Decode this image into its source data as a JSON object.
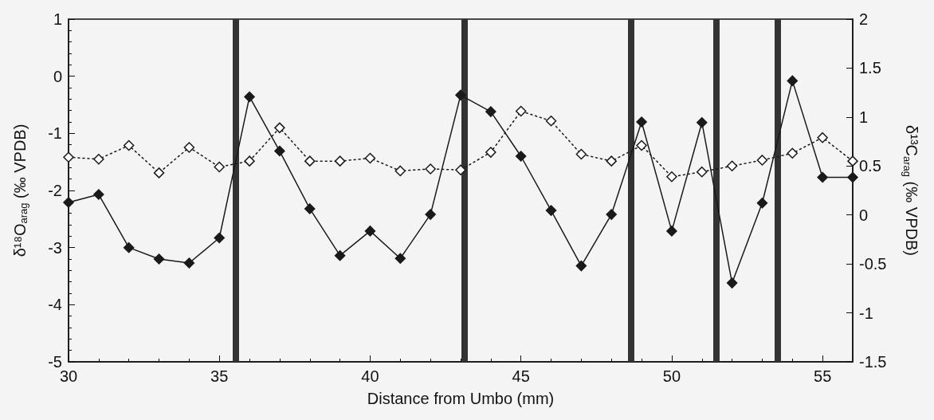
{
  "chart_data": {
    "type": "line",
    "xlabel": "Distance from Umbo (mm)",
    "ylabel": "δ¹⁸O$_{arag}$ (‰ VPDB)",
    "y2label": "δ¹³C$_{arag}$ (‰ VPDB)",
    "x": [
      30,
      31,
      32,
      33,
      34,
      35,
      36,
      37,
      38,
      39,
      40,
      41,
      42,
      43,
      44,
      45,
      46,
      47,
      48,
      49,
      50,
      51,
      52,
      53,
      54,
      55,
      56
    ],
    "series": [
      {
        "color": "#1a1a1a",
        "marker": "diamond",
        "line_style": "solid",
        "values": [
          -2.21,
          -2.07,
          -3.0,
          -3.2,
          -3.27,
          -2.83,
          -0.36,
          -1.31,
          -2.32,
          -3.14,
          -2.71,
          -3.19,
          -2.42,
          -0.33,
          -0.62,
          -1.4,
          -2.35,
          -3.32,
          -2.42,
          -0.8,
          -2.71,
          -0.81,
          -3.62,
          -2.22,
          -0.08,
          -1.77,
          -1.77
        ]
      },
      {
        "color": "#1a1a1a",
        "marker": "diamond",
        "line_style": "dotted",
        "axis": "y2",
        "values": [
          0.59,
          0.57,
          0.71,
          0.43,
          0.69,
          0.49,
          0.55,
          0.89,
          0.55,
          0.55,
          0.58,
          0.45,
          0.47,
          0.46,
          0.64,
          1.06,
          0.96,
          0.62,
          0.55,
          0.71,
          0.39,
          0.44,
          0.5,
          0.56,
          0.63,
          0.79,
          0.55
        ]
      }
    ],
    "xlim": [
      30,
      56
    ],
    "xticks": [
      30,
      35,
      40,
      45,
      50,
      55
    ],
    "ylim": [
      -5,
      1
    ],
    "yticks": [
      -5,
      -4,
      -3,
      -2,
      -1,
      0,
      1
    ],
    "y2lim": [
      -1.5,
      2
    ],
    "y2ticks": [
      -1.5,
      -1,
      -0.5,
      0,
      0.5,
      1,
      1.5,
      2
    ],
    "ref_lines": [
      {
        "axis": "x",
        "value": 35.55,
        "color": "#333333"
      },
      {
        "axis": "x",
        "value": 43.13,
        "color": "#333333"
      },
      {
        "axis": "x",
        "value": 48.66,
        "color": "#333333"
      },
      {
        "axis": "x",
        "value": 51.47,
        "color": "#333333"
      },
      {
        "axis": "x",
        "value": 53.5,
        "color": "#333333"
      }
    ],
    "grid": false
  }
}
